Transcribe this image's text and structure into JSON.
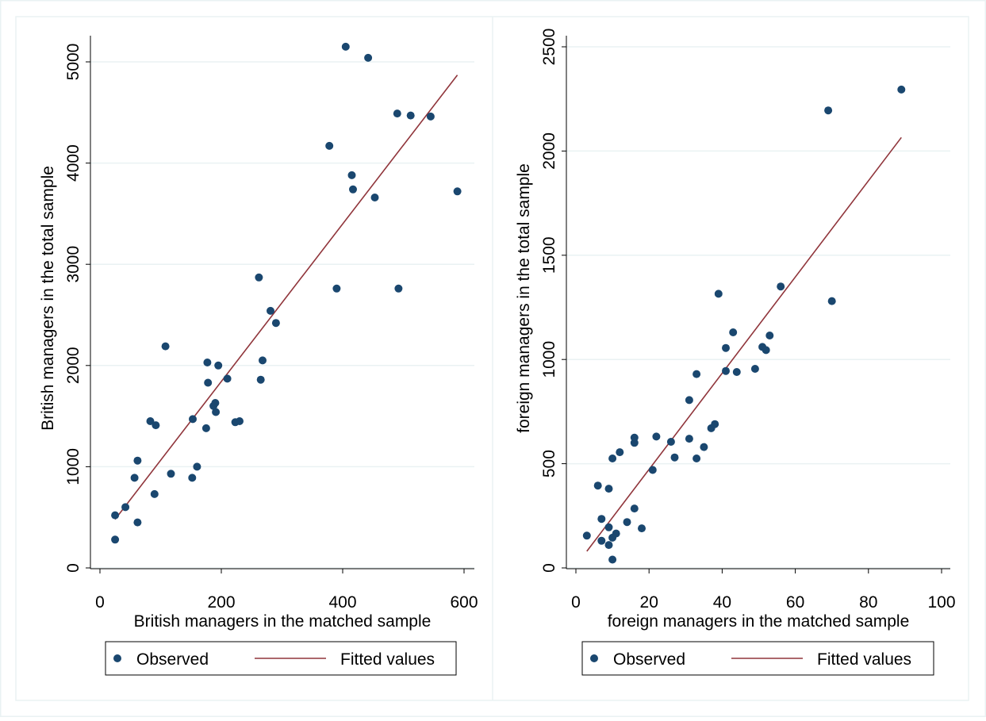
{
  "colors": {
    "marker": "#1a476f",
    "fit_line": "#90353b",
    "grid": "#eaf2f3",
    "frame": "#eaf2f3",
    "axis": "#000000"
  },
  "chart_data": [
    {
      "type": "scatter",
      "name": "british",
      "xlabel": "British managers in the matched sample",
      "ylabel": "British managers in the total sample",
      "xlim": [
        0,
        600
      ],
      "ylim": [
        0,
        5000
      ],
      "xticks": [
        "0",
        "200",
        "400",
        "600"
      ],
      "yticks": [
        "0",
        "1000",
        "2000",
        "3000",
        "4000",
        "5000"
      ],
      "grid": "horizontal",
      "legend": {
        "position": "bottom",
        "entries": [
          "Observed",
          "Fitted values"
        ]
      },
      "series": [
        {
          "name": "Observed",
          "kind": "points",
          "points": [
            [
              25,
              520
            ],
            [
              25,
              280
            ],
            [
              42,
              600
            ],
            [
              57,
              890
            ],
            [
              62,
              450
            ],
            [
              62,
              1060
            ],
            [
              83,
              1450
            ],
            [
              90,
              730
            ],
            [
              92,
              1410
            ],
            [
              108,
              2190
            ],
            [
              117,
              930
            ],
            [
              152,
              890
            ],
            [
              153,
              1470
            ],
            [
              160,
              1000
            ],
            [
              175,
              1380
            ],
            [
              177,
              2030
            ],
            [
              178,
              1830
            ],
            [
              187,
              1600
            ],
            [
              190,
              1630
            ],
            [
              191,
              1540
            ],
            [
              195,
              2000
            ],
            [
              210,
              1870
            ],
            [
              223,
              1440
            ],
            [
              230,
              1450
            ],
            [
              262,
              2870
            ],
            [
              265,
              1860
            ],
            [
              268,
              2050
            ],
            [
              281,
              2540
            ],
            [
              290,
              2420
            ],
            [
              378,
              4170
            ],
            [
              390,
              2760
            ],
            [
              405,
              5150
            ],
            [
              415,
              3880
            ],
            [
              417,
              3740
            ],
            [
              442,
              5040
            ],
            [
              453,
              3660
            ],
            [
              490,
              4490
            ],
            [
              492,
              2760
            ],
            [
              512,
              4470
            ],
            [
              545,
              4460
            ],
            [
              589,
              3720
            ]
          ]
        },
        {
          "name": "Fitted values",
          "kind": "line",
          "points": [
            [
              25,
              480
            ],
            [
              589,
              4870
            ]
          ]
        }
      ]
    },
    {
      "type": "scatter",
      "name": "foreign",
      "xlabel": "foreign managers in the matched sample",
      "ylabel": "foreign managers in the total sample",
      "xlim": [
        0,
        100
      ],
      "ylim": [
        0,
        2500
      ],
      "xticks": [
        "0",
        "20",
        "40",
        "60",
        "80",
        "100"
      ],
      "yticks": [
        "0",
        "500",
        "1000",
        "1500",
        "2000",
        "2500"
      ],
      "grid": "horizontal",
      "legend": {
        "position": "bottom",
        "entries": [
          "Observed",
          "Fitted values"
        ]
      },
      "series": [
        {
          "name": "Observed",
          "kind": "points",
          "points": [
            [
              3,
              155
            ],
            [
              6,
              395
            ],
            [
              7,
              130
            ],
            [
              7,
              235
            ],
            [
              9,
              380
            ],
            [
              9,
              195
            ],
            [
              9,
              110
            ],
            [
              10,
              40
            ],
            [
              10,
              145
            ],
            [
              10,
              525
            ],
            [
              11,
              165
            ],
            [
              12,
              555
            ],
            [
              14,
              220
            ],
            [
              16,
              285
            ],
            [
              16,
              600
            ],
            [
              16,
              625
            ],
            [
              18,
              190
            ],
            [
              21,
              470
            ],
            [
              22,
              630
            ],
            [
              26,
              605
            ],
            [
              27,
              530
            ],
            [
              31,
              805
            ],
            [
              31,
              620
            ],
            [
              33,
              525
            ],
            [
              33,
              930
            ],
            [
              35,
              580
            ],
            [
              37,
              670
            ],
            [
              38,
              690
            ],
            [
              39,
              1315
            ],
            [
              41,
              945
            ],
            [
              41,
              1055
            ],
            [
              43,
              1130
            ],
            [
              44,
              940
            ],
            [
              49,
              955
            ],
            [
              51,
              1060
            ],
            [
              52,
              1045
            ],
            [
              53,
              1115
            ],
            [
              56,
              1350
            ],
            [
              69,
              2195
            ],
            [
              70,
              1280
            ],
            [
              89,
              2295
            ]
          ]
        },
        {
          "name": "Fitted values",
          "kind": "line",
          "points": [
            [
              3,
              80
            ],
            [
              89,
              2065
            ]
          ]
        }
      ]
    }
  ]
}
